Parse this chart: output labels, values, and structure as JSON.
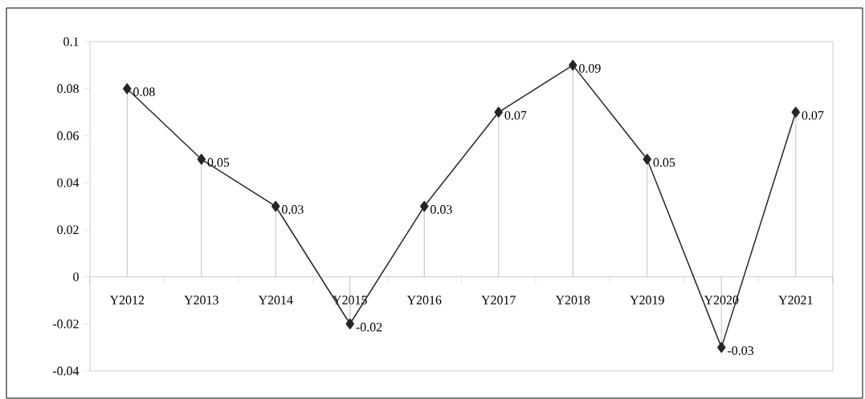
{
  "chart_data": {
    "type": "line",
    "categories": [
      "Y2012",
      "Y2013",
      "Y2014",
      "Y2015",
      "Y2016",
      "Y2017",
      "Y2018",
      "Y2019",
      "Y2020",
      "Y2021"
    ],
    "values": [
      0.08,
      0.05,
      0.03,
      -0.02,
      0.03,
      0.07,
      0.09,
      0.05,
      -0.03,
      0.07
    ],
    "color": "#262626",
    "marker": "diamond",
    "line_style": "solid",
    "data_labels": true,
    "ylim": [
      -0.04,
      0.1
    ],
    "yticks": [
      -0.04,
      -0.02,
      0,
      0.02,
      0.04,
      0.06,
      0.08,
      0.1
    ]
  }
}
